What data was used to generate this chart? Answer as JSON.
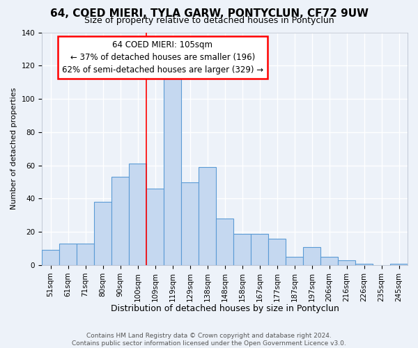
{
  "title": "64, COED MIERI, TYLA GARW, PONTYCLUN, CF72 9UW",
  "subtitle": "Size of property relative to detached houses in Pontyclun",
  "xlabel": "Distribution of detached houses by size in Pontyclun",
  "ylabel": "Number of detached properties",
  "bar_labels": [
    "51sqm",
    "61sqm",
    "71sqm",
    "80sqm",
    "90sqm",
    "100sqm",
    "109sqm",
    "119sqm",
    "129sqm",
    "138sqm",
    "148sqm",
    "158sqm",
    "167sqm",
    "177sqm",
    "187sqm",
    "197sqm",
    "206sqm",
    "216sqm",
    "226sqm",
    "235sqm",
    "245sqm"
  ],
  "bar_values": [
    9,
    13,
    13,
    38,
    53,
    61,
    46,
    112,
    50,
    59,
    28,
    19,
    19,
    16,
    5,
    11,
    5,
    3,
    1,
    0,
    1
  ],
  "bar_color": "#c5d8f0",
  "bar_edge_color": "#5b9bd5",
  "vline_x_index": 6,
  "vline_color": "red",
  "annotation_title": "64 COED MIERI: 105sqm",
  "annotation_line1": "← 37% of detached houses are smaller (196)",
  "annotation_line2": "62% of semi-detached houses are larger (329) →",
  "annotation_box_facecolor": "white",
  "annotation_box_edgecolor": "red",
  "ylim": [
    0,
    140
  ],
  "yticks": [
    0,
    20,
    40,
    60,
    80,
    100,
    120,
    140
  ],
  "footer1": "Contains HM Land Registry data © Crown copyright and database right 2024.",
  "footer2": "Contains public sector information licensed under the Open Government Licence v3.0.",
  "bg_color": "#edf2f9",
  "grid_color": "white",
  "title_fontsize": 11,
  "subtitle_fontsize": 9,
  "ylabel_fontsize": 8,
  "xlabel_fontsize": 9,
  "tick_fontsize": 7.5,
  "annotation_fontsize": 8.5,
  "footer_fontsize": 6.5
}
